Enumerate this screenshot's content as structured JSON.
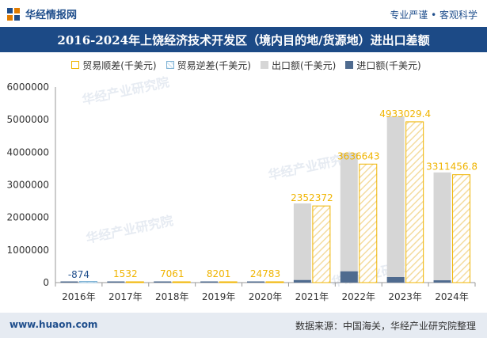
{
  "header": {
    "brand": "华经情报网",
    "tagline": "专业严谨 • 客观科学"
  },
  "colors": {
    "title_bg": "#1c4a86",
    "surplus": "#f0b400",
    "export": "#d6d6d6",
    "import": "#4f6b8f",
    "label_blue": "#1f4e8c"
  },
  "chart_data": {
    "type": "bar",
    "title": "2016-2024年上饶经济技术开发区（境内目的地/货源地）进出口差额",
    "categories": [
      "2016年",
      "2017年",
      "2018年",
      "2019年",
      "2020年",
      "2021年",
      "2022年",
      "2023年",
      "2024年"
    ],
    "series": [
      {
        "name": "贸易顺差(千美元)",
        "values": [
          null,
          1532,
          7061,
          8201,
          24783,
          2352372,
          3636643,
          4933029.4,
          3311456.8
        ]
      },
      {
        "name": "贸易逆差(千美元)",
        "values": [
          874,
          null,
          null,
          null,
          null,
          null,
          null,
          null,
          null
        ]
      },
      {
        "name": "出口额(千美元)",
        "values": [
          0,
          5000,
          12000,
          14000,
          30000,
          2430000,
          3980000,
          5100000,
          3380000
        ]
      },
      {
        "name": "进口额(千美元)",
        "values": [
          874,
          3500,
          5000,
          6000,
          6000,
          78000,
          345000,
          170000,
          70000
        ]
      }
    ],
    "data_labels": [
      "-874",
      "1532",
      "7061",
      "8201",
      "24783",
      "2352372",
      "3636643",
      "4933029.4",
      "3311456.8"
    ],
    "yticks": [
      "0",
      "1000000",
      "2000000",
      "3000000",
      "4000000",
      "5000000",
      "6000000"
    ],
    "ylim": [
      0,
      6000000
    ],
    "legend_position": "top"
  },
  "watermark": "华经产业研究院",
  "footer": {
    "url": "www.huaon.com",
    "source": "数据来源：中国海关，华经产业研究院整理"
  }
}
